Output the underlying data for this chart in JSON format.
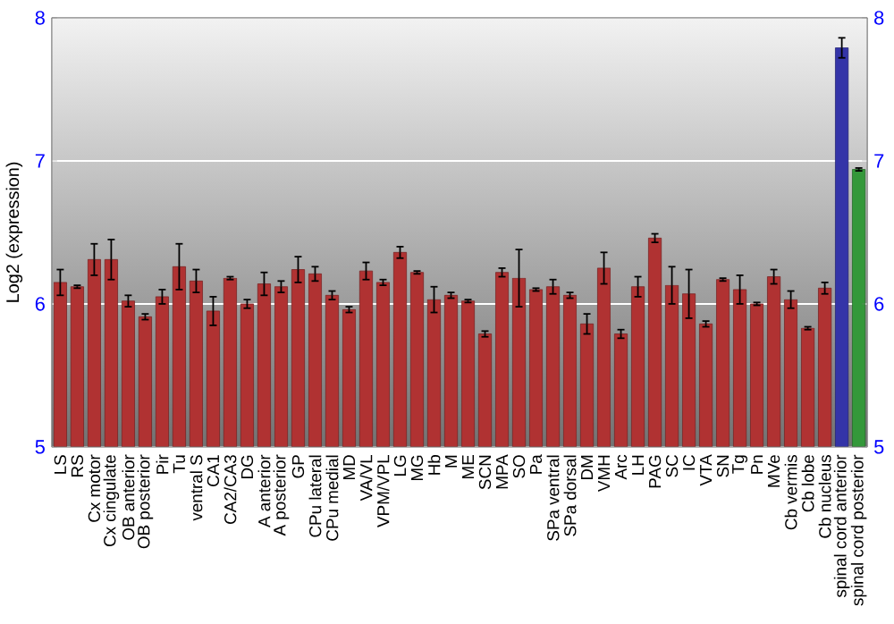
{
  "chart_data": {
    "type": "bar",
    "ylabel": "Log2 (expression)",
    "categories": [
      "LS",
      "RS",
      "Cx motor",
      "Cx cingulate",
      "OB anterior",
      "OB posterior",
      "Pir",
      "Tu",
      "ventral S",
      "CA1",
      "CA2/CA3",
      "DG",
      "A anterior",
      "A posterior",
      "GP",
      "CPu lateral",
      "CPu medial",
      "MD",
      "VA/VL",
      "VPM/VPL",
      "LG",
      "MG",
      "Hb",
      "M",
      "ME",
      "SCN",
      "MPA",
      "SO",
      "Pa",
      "SPa ventral",
      "SPa dorsal",
      "DM",
      "VMH",
      "Arc",
      "LH",
      "PAG",
      "SC",
      "IC",
      "VTA",
      "SN",
      "Tg",
      "Pn",
      "MVe",
      "Cb vermis",
      "Cb lobe",
      "Cb nucleus",
      "spinal cord anterior",
      "spinal cord posterior"
    ],
    "values": [
      6.15,
      6.12,
      6.31,
      6.31,
      6.02,
      5.91,
      6.05,
      6.26,
      6.16,
      5.95,
      6.18,
      6.0,
      6.14,
      6.12,
      6.24,
      6.21,
      6.06,
      5.96,
      6.23,
      6.15,
      6.36,
      6.22,
      6.03,
      6.06,
      6.02,
      5.79,
      6.22,
      6.18,
      6.1,
      6.12,
      6.06,
      5.86,
      6.25,
      5.79,
      6.12,
      6.46,
      6.13,
      6.07,
      5.86,
      6.17,
      6.1,
      6.0,
      6.19,
      6.03,
      5.83,
      6.11,
      7.79,
      6.94
    ],
    "errors": [
      0.09,
      0.01,
      0.11,
      0.14,
      0.04,
      0.02,
      0.05,
      0.16,
      0.08,
      0.1,
      0.01,
      0.03,
      0.08,
      0.04,
      0.09,
      0.05,
      0.03,
      0.02,
      0.06,
      0.02,
      0.04,
      0.01,
      0.09,
      0.02,
      0.01,
      0.02,
      0.03,
      0.2,
      0.01,
      0.05,
      0.02,
      0.07,
      0.11,
      0.03,
      0.07,
      0.03,
      0.13,
      0.17,
      0.02,
      0.01,
      0.1,
      0.01,
      0.05,
      0.06,
      0.01,
      0.04,
      0.07,
      0.01
    ],
    "colors": [
      "#b03232",
      "#b03232",
      "#b03232",
      "#b03232",
      "#b03232",
      "#b03232",
      "#b03232",
      "#b03232",
      "#b03232",
      "#b03232",
      "#b03232",
      "#b03232",
      "#b03232",
      "#b03232",
      "#b03232",
      "#b03232",
      "#b03232",
      "#b03232",
      "#b03232",
      "#b03232",
      "#b03232",
      "#b03232",
      "#b03232",
      "#b03232",
      "#b03232",
      "#b03232",
      "#b03232",
      "#b03232",
      "#b03232",
      "#b03232",
      "#b03232",
      "#b03232",
      "#b03232",
      "#b03232",
      "#b03232",
      "#b03232",
      "#b03232",
      "#b03232",
      "#b03232",
      "#b03232",
      "#b03232",
      "#b03232",
      "#b03232",
      "#b03232",
      "#b03232",
      "#b03232",
      "#3434a8",
      "#34983a"
    ],
    "ylim": [
      5,
      8
    ],
    "yticks": [
      5,
      6,
      7,
      8
    ],
    "y2lim": [
      5,
      8
    ],
    "y2ticks": [
      5,
      6,
      7,
      8
    ],
    "grid": "y"
  }
}
